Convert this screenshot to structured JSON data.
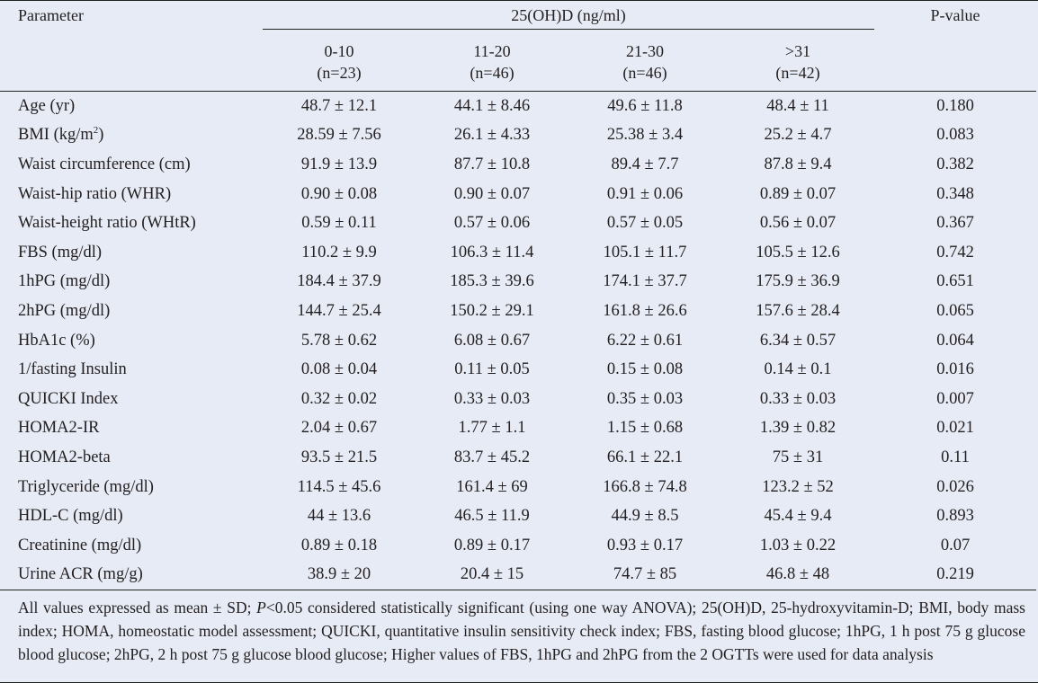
{
  "header": {
    "parameter": "Parameter",
    "group_title": "25(OH)D (ng/ml)",
    "pvalue": "P-value",
    "columns": [
      {
        "range": "0-10",
        "n": "(n=23)"
      },
      {
        "range": "11-20",
        "n": "(n=46)"
      },
      {
        "range": "21-30",
        "n": "(n=46)"
      },
      {
        "range": ">31",
        "n": "(n=42)"
      }
    ]
  },
  "rows": [
    {
      "param": "Age (yr)",
      "values": [
        "48.7 ± 12.1",
        "44.1 ± 8.46",
        "49.6 ± 11.8",
        "48.4 ± 11"
      ],
      "p": "0.180"
    },
    {
      "param": "BMI (kg/m",
      "param_sup": "2",
      "param_tail": ")",
      "values": [
        "28.59 ± 7.56",
        "26.1 ± 4.33",
        "25.38 ± 3.4",
        "25.2 ± 4.7"
      ],
      "p": "0.083"
    },
    {
      "param": "Waist circumference (cm)",
      "values": [
        "91.9 ± 13.9",
        "87.7 ± 10.8",
        "89.4 ± 7.7",
        "87.8 ± 9.4"
      ],
      "p": "0.382"
    },
    {
      "param": "Waist-hip ratio (WHR)",
      "values": [
        "0.90 ± 0.08",
        "0.90 ± 0.07",
        "0.91 ± 0.06",
        "0.89 ± 0.07"
      ],
      "p": "0.348"
    },
    {
      "param": "Waist-height ratio (WHtR)",
      "values": [
        "0.59 ± 0.11",
        "0.57 ± 0.06",
        "0.57 ± 0.05",
        "0.56 ± 0.07"
      ],
      "p": "0.367"
    },
    {
      "param": "FBS (mg/dl)",
      "values": [
        "110.2 ± 9.9",
        "106.3 ± 11.4",
        "105.1 ± 11.7",
        "105.5 ± 12.6"
      ],
      "p": "0.742"
    },
    {
      "param": "1hPG (mg/dl)",
      "values": [
        "184.4 ± 37.9",
        "185.3 ± 39.6",
        "174.1 ± 37.7",
        "175.9 ± 36.9"
      ],
      "p": "0.651"
    },
    {
      "param": "2hPG (mg/dl)",
      "values": [
        "144.7 ± 25.4",
        "150.2 ± 29.1",
        "161.8 ± 26.6",
        "157.6 ± 28.4"
      ],
      "p": "0.065"
    },
    {
      "param": "HbA1c (%)",
      "values": [
        "5.78 ± 0.62",
        "6.08 ± 0.67",
        "6.22 ± 0.61",
        "6.34 ± 0.57"
      ],
      "p": "0.064"
    },
    {
      "param": "1/fasting Insulin",
      "values": [
        "0.08 ± 0.04",
        "0.11 ± 0.05",
        "0.15 ± 0.08",
        "0.14 ± 0.1"
      ],
      "p": "0.016"
    },
    {
      "param": "QUICKI Index",
      "values": [
        "0.32 ± 0.02",
        "0.33 ± 0.03",
        "0.35 ± 0.03",
        "0.33 ± 0.03"
      ],
      "p": "0.007"
    },
    {
      "param": "HOMA2-IR",
      "values": [
        "2.04 ± 0.67",
        "1.77 ± 1.1",
        "1.15 ± 0.68",
        "1.39 ± 0.82"
      ],
      "p": "0.021"
    },
    {
      "param": "HOMA2-beta",
      "values": [
        "93.5 ± 21.5",
        "83.7 ± 45.2",
        "66.1 ± 22.1",
        "75 ± 31"
      ],
      "p": "0.11"
    },
    {
      "param": "Triglyceride (mg/dl)",
      "values": [
        "114.5 ± 45.6",
        "161.4 ± 69",
        "166.8 ± 74.8",
        "123.2 ± 52"
      ],
      "p": "0.026"
    },
    {
      "param": "HDL-C (mg/dl)",
      "values": [
        "44 ± 13.6",
        "46.5 ± 11.9",
        "44.9 ± 8.5",
        "45.4 ± 9.4"
      ],
      "p": "0.893"
    },
    {
      "param": "Creatinine (mg/dl)",
      "values": [
        "0.89 ± 0.18",
        "0.89 ± 0.17",
        "0.93 ± 0.17",
        "1.03 ± 0.22"
      ],
      "p": "0.07"
    },
    {
      "param": "Urine ACR (mg/g)",
      "values": [
        "38.9 ± 20",
        "20.4 ± 15",
        "74.7 ± 85",
        "46.8 ± 48"
      ],
      "p": "0.219"
    }
  ],
  "footnote": {
    "lead": "All values expressed as mean ± SD; ",
    "p_italic": "P",
    "rest": "<0.05 considered statistically significant (using one way ANOVA); 25(OH)D, 25-hydroxyvitamin-D; BMI, body mass index; HOMA, homeostatic model assessment; QUICKI, quantitative insulin sensitivity check index; FBS, fasting blood glucose; 1hPG, 1 h post 75 g glucose blood glucose; 2hPG, 2 h post 75 g glucose blood glucose; Higher values of FBS, 1hPG and 2hPG from the 2 OGTTs were used for data analysis"
  },
  "colors": {
    "background": "#e6ebf5",
    "text": "#231f20",
    "rule": "#222222"
  }
}
